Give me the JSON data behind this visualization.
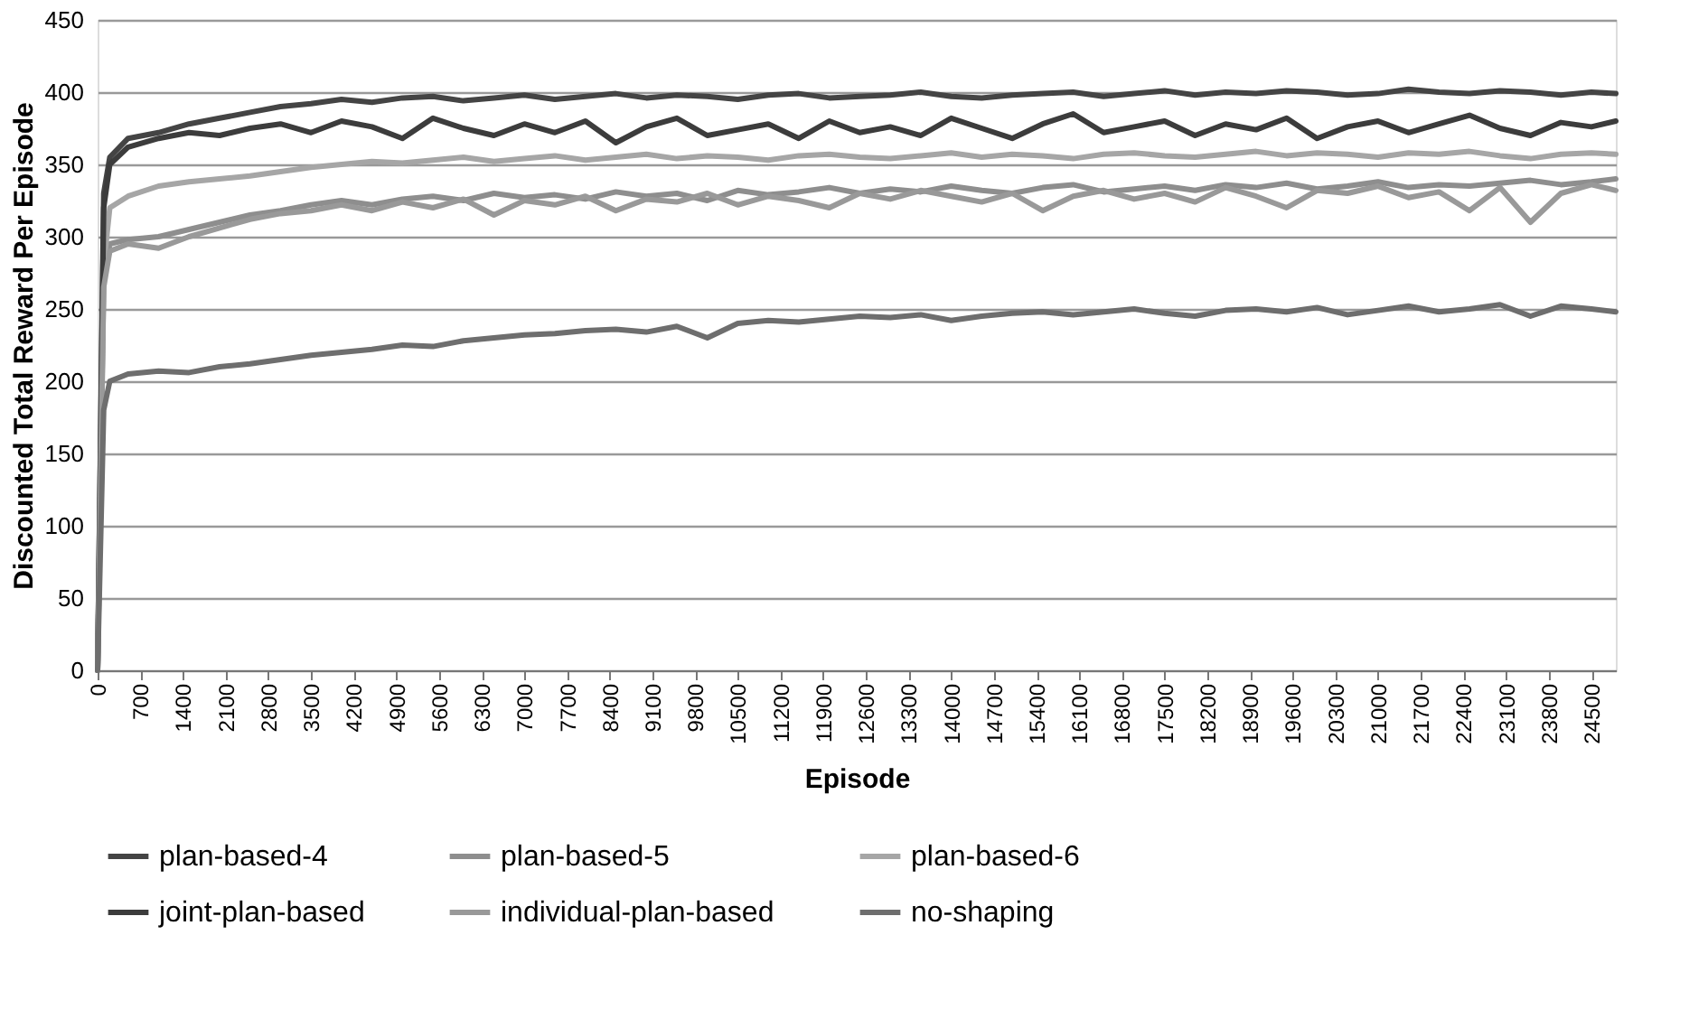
{
  "chart_data": {
    "type": "line",
    "xlabel": "Episode",
    "ylabel": "Discounted Total Reward Per Episode",
    "x": [
      0,
      100,
      200,
      500,
      1000,
      1500,
      2000,
      2500,
      3000,
      3500,
      4000,
      4500,
      5000,
      5500,
      6000,
      6500,
      7000,
      7500,
      8000,
      8500,
      9000,
      9500,
      10000,
      10500,
      11000,
      11500,
      12000,
      12500,
      13000,
      13500,
      14000,
      14500,
      15000,
      15500,
      16000,
      16500,
      17000,
      17500,
      18000,
      18500,
      19000,
      19500,
      20000,
      20500,
      21000,
      21500,
      22000,
      22500,
      23000,
      23500,
      24000,
      24500,
      24900
    ],
    "series": [
      {
        "name": "plan-based-4",
        "color": "#444444",
        "values": [
          0,
          330,
          355,
          368,
          372,
          378,
          382,
          386,
          390,
          392,
          395,
          393,
          396,
          397,
          394,
          396,
          398,
          395,
          397,
          399,
          396,
          398,
          397,
          395,
          398,
          399,
          396,
          397,
          398,
          400,
          397,
          396,
          398,
          399,
          400,
          397,
          399,
          401,
          398,
          400,
          399,
          401,
          400,
          398,
          399,
          402,
          400,
          399,
          401,
          400,
          398,
          400,
          399
        ]
      },
      {
        "name": "plan-based-5",
        "color": "#8e8e8e",
        "values": [
          0,
          270,
          295,
          298,
          300,
          305,
          310,
          315,
          318,
          322,
          325,
          322,
          326,
          328,
          325,
          330,
          327,
          329,
          326,
          331,
          328,
          330,
          325,
          332,
          329,
          331,
          334,
          330,
          333,
          331,
          335,
          332,
          330,
          334,
          336,
          331,
          333,
          335,
          332,
          336,
          334,
          337,
          333,
          335,
          338,
          334,
          336,
          335,
          337,
          339,
          336,
          338,
          340
        ]
      },
      {
        "name": "plan-based-6",
        "color": "#a6a6a6",
        "values": [
          0,
          280,
          320,
          328,
          335,
          338,
          340,
          342,
          345,
          348,
          350,
          352,
          351,
          353,
          355,
          352,
          354,
          356,
          353,
          355,
          357,
          354,
          356,
          355,
          353,
          356,
          357,
          355,
          354,
          356,
          358,
          355,
          357,
          356,
          354,
          357,
          358,
          356,
          355,
          357,
          359,
          356,
          358,
          357,
          355,
          358,
          357,
          359,
          356,
          354,
          357,
          358,
          357
        ]
      },
      {
        "name": "joint-plan-based",
        "color": "#3c3c3c",
        "values": [
          0,
          320,
          350,
          362,
          368,
          372,
          370,
          375,
          378,
          372,
          380,
          376,
          368,
          382,
          375,
          370,
          378,
          372,
          380,
          365,
          376,
          382,
          370,
          374,
          378,
          368,
          380,
          372,
          376,
          370,
          382,
          375,
          368,
          378,
          385,
          372,
          376,
          380,
          370,
          378,
          374,
          382,
          368,
          376,
          380,
          372,
          378,
          384,
          375,
          370,
          379,
          376,
          380
        ]
      },
      {
        "name": "individual-plan-based",
        "color": "#999999",
        "values": [
          0,
          265,
          290,
          295,
          292,
          300,
          306,
          312,
          316,
          318,
          322,
          318,
          324,
          320,
          326,
          315,
          325,
          322,
          328,
          318,
          326,
          324,
          330,
          322,
          328,
          325,
          320,
          330,
          326,
          332,
          328,
          324,
          330,
          318,
          328,
          332,
          326,
          330,
          324,
          334,
          328,
          320,
          332,
          330,
          335,
          327,
          331,
          318,
          334,
          310,
          330,
          336,
          332
        ]
      },
      {
        "name": "no-shaping",
        "color": "#6e6e6e",
        "values": [
          0,
          180,
          200,
          205,
          207,
          206,
          210,
          212,
          215,
          218,
          220,
          222,
          225,
          224,
          228,
          230,
          232,
          233,
          235,
          236,
          234,
          238,
          230,
          240,
          242,
          241,
          243,
          245,
          244,
          246,
          242,
          245,
          247,
          248,
          246,
          248,
          250,
          247,
          245,
          249,
          250,
          248,
          251,
          246,
          249,
          252,
          248,
          250,
          253,
          245,
          252,
          250,
          248
        ]
      }
    ],
    "xlim": [
      0,
      24900
    ],
    "xticks": [
      0,
      700,
      1400,
      2100,
      2800,
      3500,
      4200,
      4900,
      5600,
      6300,
      7000,
      7700,
      8400,
      9100,
      9800,
      10500,
      11200,
      11900,
      12600,
      13300,
      14000,
      14700,
      15400,
      16100,
      16800,
      17500,
      18200,
      18900,
      19600,
      20300,
      21000,
      21700,
      22400,
      23100,
      23800,
      24500
    ],
    "ylim": [
      0,
      450
    ],
    "yticks": [
      0,
      50,
      100,
      150,
      200,
      250,
      300,
      350,
      400,
      450
    ],
    "grid": "y",
    "legend": "bottom",
    "marker": "none",
    "line_style": "solid"
  }
}
